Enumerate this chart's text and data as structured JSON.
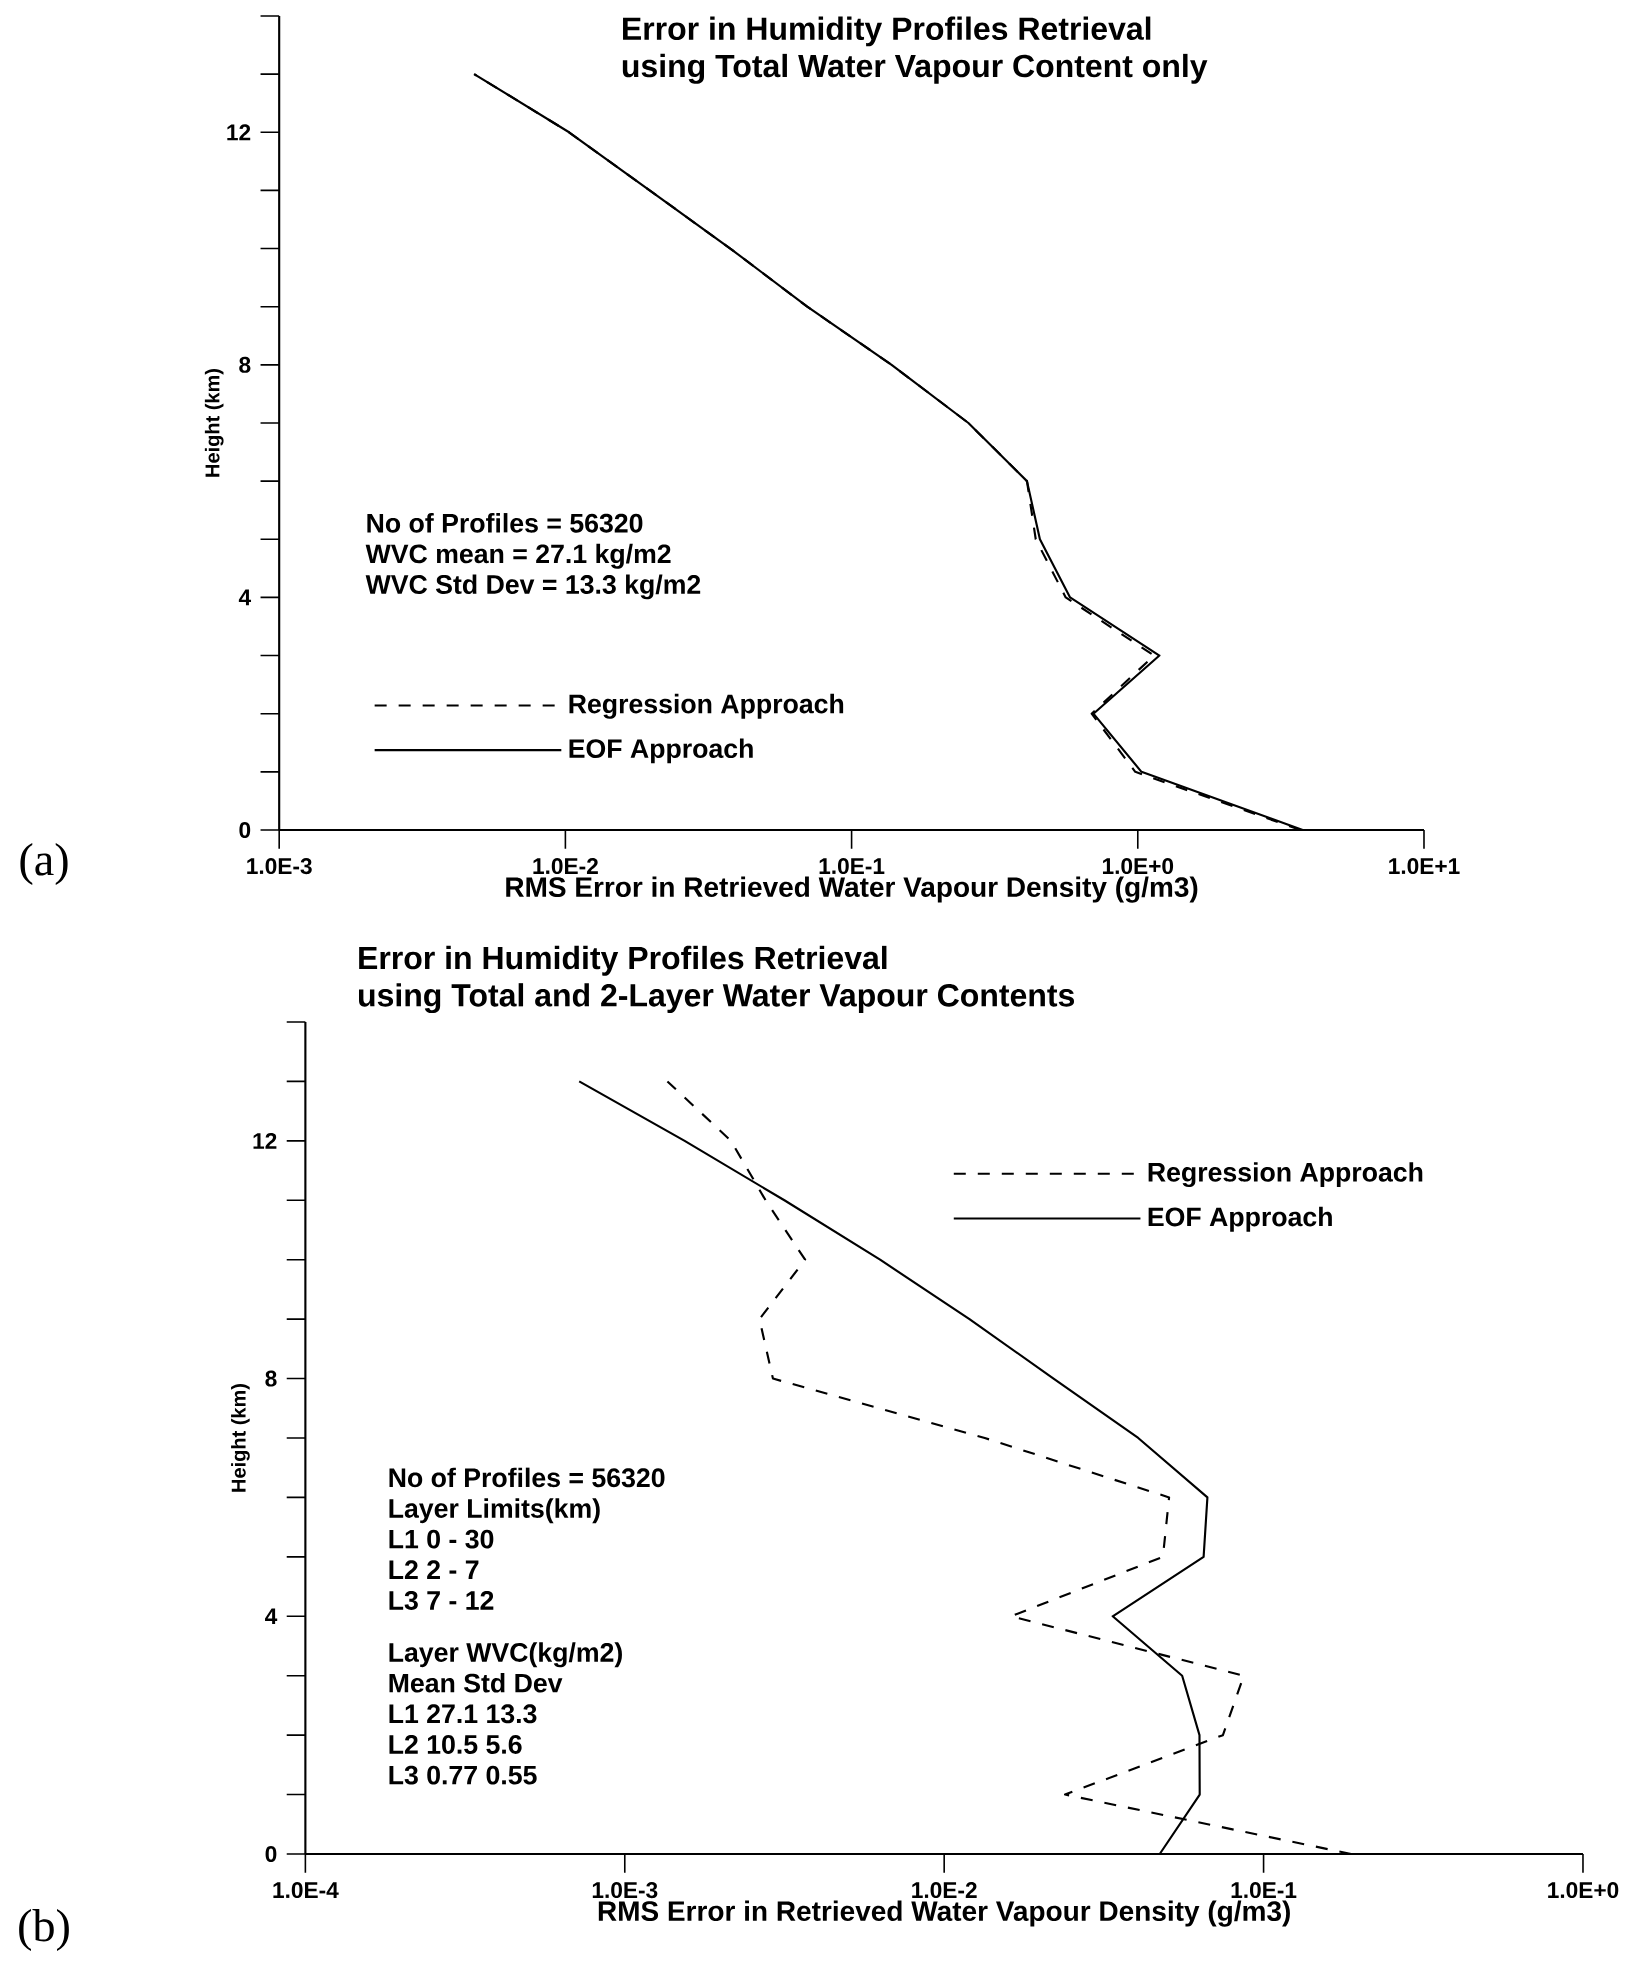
{
  "chart_data": [
    {
      "type": "line",
      "title": "Error in Humidity Profiles Retrieval\nusing Total Water Vapour Content only",
      "xlabel": "RMS Error in Retrieved Water Vapour Density (g/m3)",
      "ylabel": "Height (km)",
      "log": "x",
      "xlim": [
        0.001,
        10
      ],
      "ylim": [
        0,
        14
      ],
      "xticks": [
        {
          "value": 0.001,
          "label": "1.0E-3"
        },
        {
          "value": 0.01,
          "label": "1.0E-2"
        },
        {
          "value": 0.1,
          "label": "1.0E-1"
        },
        {
          "value": 1,
          "label": "1.0E+0"
        },
        {
          "value": 10,
          "label": "1.0E+1"
        }
      ],
      "yticks": [
        0,
        {
          "value": 1,
          "label": null
        },
        {
          "value": 2,
          "label": null
        },
        {
          "value": 3,
          "label": null
        },
        4,
        {
          "value": 5,
          "label": null
        },
        {
          "value": 6,
          "label": null
        },
        {
          "value": 7,
          "label": null
        },
        8,
        {
          "value": 9,
          "label": null
        },
        {
          "value": 10,
          "label": null
        },
        {
          "value": 11,
          "label": null
        },
        12,
        {
          "value": 13,
          "label": null
        },
        {
          "value": 14,
          "label": null
        }
      ],
      "legend": "bottom left",
      "grid": false,
      "series": [
        {
          "name": "Regression Approach",
          "color": "#000000",
          "line_style": "dashed",
          "x": [
            3.7,
            0.98,
            0.69,
            1.14,
            0.56,
            0.44,
            0.41,
            0.256,
            0.138,
            0.07,
            0.0377,
            0.0197,
            0.0103,
            0.0048
          ],
          "values": [
            0,
            1,
            2,
            3,
            4,
            5,
            6,
            7,
            8,
            9,
            10,
            11,
            12,
            13
          ]
        },
        {
          "name": "EOF Approach",
          "color": "#000000",
          "line_style": "solid",
          "x": [
            3.77,
            1.03,
            0.7,
            1.19,
            0.58,
            0.455,
            0.41,
            0.256,
            0.138,
            0.07,
            0.0377,
            0.0197,
            0.0103,
            0.0048
          ],
          "values": [
            0,
            1,
            2,
            3,
            4,
            5,
            6,
            7,
            8,
            9,
            10,
            11,
            12,
            13
          ]
        }
      ],
      "annotations": [
        "No of Profiles = 56320",
        "WVC mean = 27.1 kg/m2",
        "WVC Std Dev = 13.3 kg/m2",
        "(a)"
      ]
    },
    {
      "type": "line",
      "title": "Error in Humidity Profiles Retrieval\nusing Total and 2-Layer Water Vapour Contents",
      "xlabel": "RMS Error in Retrieved Water Vapour Density (g/m3)",
      "ylabel": "Height (km)",
      "log": "x",
      "xlim": [
        0.0001,
        1
      ],
      "ylim": [
        0,
        14
      ],
      "xticks": [
        {
          "value": 0.0001,
          "label": "1.0E-4"
        },
        {
          "value": 0.001,
          "label": "1.0E-3"
        },
        {
          "value": 0.01,
          "label": "1.0E-2"
        },
        {
          "value": 0.1,
          "label": "1.0E-1"
        },
        {
          "value": 1,
          "label": "1.0E+0"
        }
      ],
      "yticks": [
        0,
        {
          "value": 1,
          "label": null
        },
        {
          "value": 2,
          "label": null
        },
        {
          "value": 3,
          "label": null
        },
        4,
        {
          "value": 5,
          "label": null
        },
        {
          "value": 6,
          "label": null
        },
        {
          "value": 7,
          "label": null
        },
        8,
        {
          "value": 9,
          "label": null
        },
        {
          "value": 10,
          "label": null
        },
        {
          "value": 11,
          "label": null
        },
        12,
        {
          "value": 13,
          "label": null
        },
        {
          "value": 14,
          "label": null
        }
      ],
      "legend": "top right",
      "grid": false,
      "series": [
        {
          "name": "Regression Approach",
          "color": "#000000",
          "line_style": "dashed",
          "x": [
            0.188,
            0.0239,
            0.0746,
            0.0867,
            0.0162,
            0.0484,
            0.0506,
            0.0134,
            0.00291,
            0.00264,
            0.00367,
            0.00276,
            0.00215,
            0.00136
          ],
          "values": [
            0,
            1,
            2,
            3,
            4,
            5,
            6,
            7,
            8,
            9,
            10,
            11,
            12,
            13
          ]
        },
        {
          "name": "EOF Approach",
          "color": "#000000",
          "line_style": "solid",
          "x": [
            0.0473,
            0.0631,
            0.063,
            0.0556,
            0.0337,
            0.0649,
            0.0667,
            0.0405,
            0.022,
            0.012,
            0.0063,
            0.00316,
            0.00154,
            0.00072
          ],
          "values": [
            0,
            1,
            2,
            3,
            4,
            5,
            6,
            7,
            8,
            9,
            10,
            11,
            12,
            13
          ]
        }
      ],
      "annotations": [
        "No of Profiles = 56320",
        "Layer Limits(km)",
        "L1 0 - 30",
        "L2 2 - 7",
        "L3 7 - 12",
        "Layer WVC(kg/m2)",
        "Mean Std Dev",
        "L1 27.1 13.3",
        "L2 10.5 5.6",
        "L3 0.77 0.55",
        "(b)"
      ]
    }
  ]
}
